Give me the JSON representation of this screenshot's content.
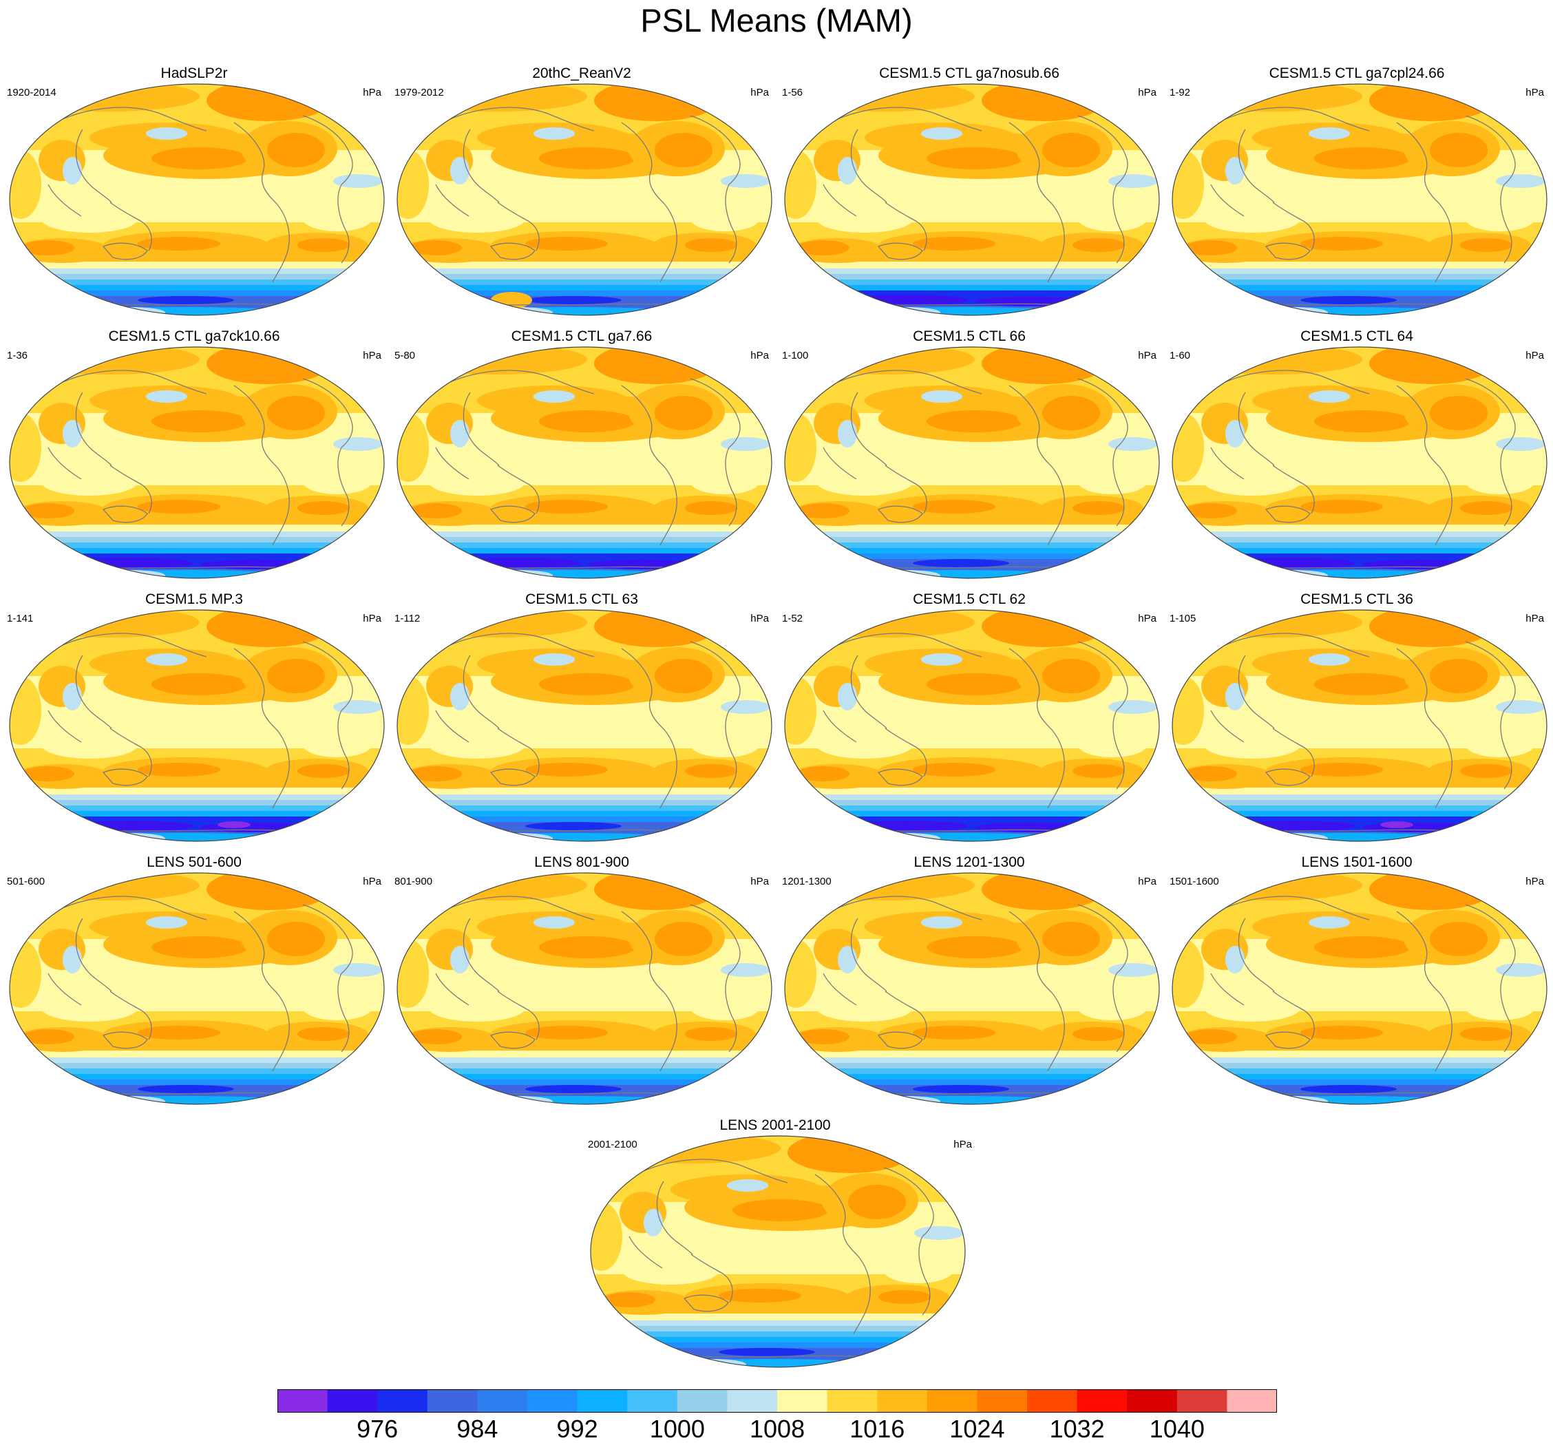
{
  "title": "PSL Means (MAM)",
  "chart_data": [
    {
      "type": "heatmap",
      "title": "HadSLP2r",
      "left_label": "1920-2014",
      "right_label": "hPa"
    },
    {
      "type": "heatmap",
      "title": "20thC_ReanV2",
      "left_label": "1979-2012",
      "right_label": "hPa"
    },
    {
      "type": "heatmap",
      "title": "CESM1.5 CTL ga7nosub.66",
      "left_label": "1-56",
      "right_label": "hPa"
    },
    {
      "type": "heatmap",
      "title": "CESM1.5 CTL ga7cpl24.66",
      "left_label": "1-92",
      "right_label": "hPa"
    },
    {
      "type": "heatmap",
      "title": "CESM1.5 CTL ga7ck10.66",
      "left_label": "1-36",
      "right_label": "hPa"
    },
    {
      "type": "heatmap",
      "title": "CESM1.5 CTL ga7.66",
      "left_label": "5-80",
      "right_label": "hPa"
    },
    {
      "type": "heatmap",
      "title": "CESM1.5 CTL 66",
      "left_label": "1-100",
      "right_label": "hPa"
    },
    {
      "type": "heatmap",
      "title": "CESM1.5 CTL 64",
      "left_label": "1-60",
      "right_label": "hPa"
    },
    {
      "type": "heatmap",
      "title": "CESM1.5 MP.3",
      "left_label": "1-141",
      "right_label": "hPa"
    },
    {
      "type": "heatmap",
      "title": "CESM1.5 CTL 63",
      "left_label": "1-112",
      "right_label": "hPa"
    },
    {
      "type": "heatmap",
      "title": "CESM1.5 CTL 62",
      "left_label": "1-52",
      "right_label": "hPa"
    },
    {
      "type": "heatmap",
      "title": "CESM1.5 CTL 36",
      "left_label": "1-105",
      "right_label": "hPa"
    },
    {
      "type": "heatmap",
      "title": "LENS 501-600",
      "left_label": "501-600",
      "right_label": "hPa"
    },
    {
      "type": "heatmap",
      "title": "LENS 801-900",
      "left_label": "801-900",
      "right_label": "hPa"
    },
    {
      "type": "heatmap",
      "title": "LENS 1201-1300",
      "left_label": "1201-1300",
      "right_label": "hPa"
    },
    {
      "type": "heatmap",
      "title": "LENS 1501-1600",
      "left_label": "1501-1600",
      "right_label": "hPa"
    },
    {
      "type": "heatmap",
      "title": "LENS 2001-2100",
      "left_label": "2001-2100",
      "right_label": "hPa"
    }
  ],
  "colorbar": {
    "colors": [
      "#8a2be8",
      "#3a12f0",
      "#1a2cf0",
      "#3d66e0",
      "#2f7ef0",
      "#1e90ff",
      "#0cb0ff",
      "#46c0f8",
      "#96d0ea",
      "#bfe2f3",
      "#fffaa6",
      "#ffd93a",
      "#ffbb1a",
      "#ff9c06",
      "#ff7a00",
      "#ff4a00",
      "#ff0a00",
      "#d80000",
      "#dd3a3a",
      "#ffb3b3"
    ],
    "labels": [
      "976",
      "984",
      "992",
      "1000",
      "1008",
      "1016",
      "1024",
      "1032",
      "1040"
    ]
  }
}
